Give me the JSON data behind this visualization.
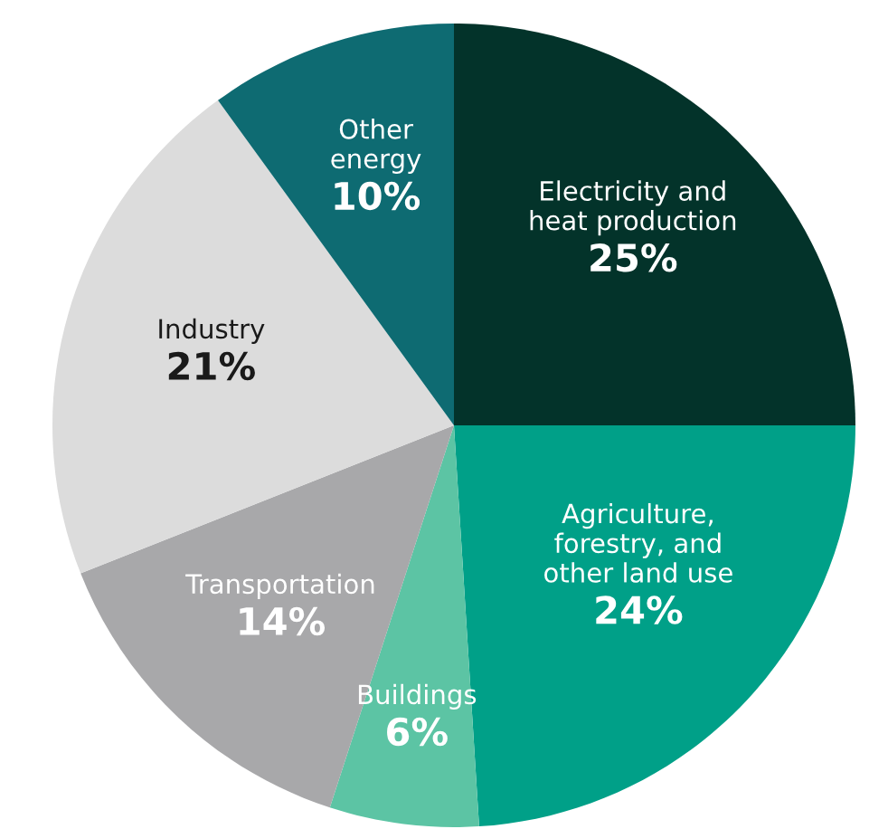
{
  "chart_data": {
    "type": "pie",
    "categories": [
      "Electricity and\nheat production",
      "Agriculture,\nforestry, and\nother land use",
      "Buildings",
      "Transportation",
      "Industry",
      "Other\nenergy"
    ],
    "values": [
      25,
      24,
      6,
      14,
      21,
      10
    ],
    "colors": [
      "#03332a",
      "#00a088",
      "#5cc4a4",
      "#a8a8aa",
      "#dcdcdc",
      "#0e6b72"
    ],
    "value_labels": [
      "25%",
      "24%",
      "6%",
      "14%",
      "21%",
      "10%"
    ]
  }
}
